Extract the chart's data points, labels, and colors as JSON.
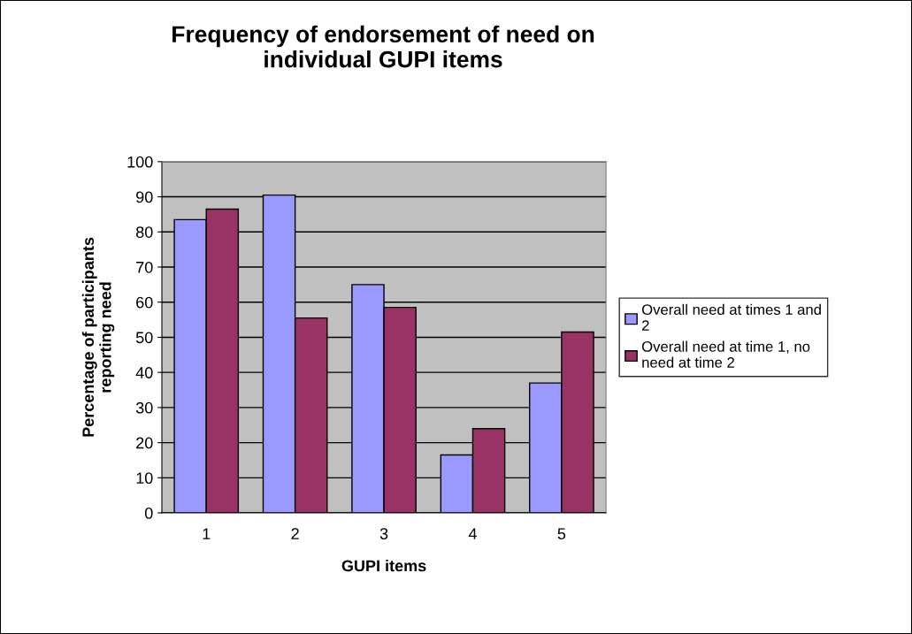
{
  "chart_data": {
    "type": "bar",
    "title": "Frequency of endorsement of need on\nindividual GUPI items",
    "xlabel": "GUPI items",
    "ylabel": "Percentage of participants\nreporting need",
    "categories": [
      "1",
      "2",
      "3",
      "4",
      "5"
    ],
    "series": [
      {
        "name": "Overall need at times 1 and\n2",
        "color": "#9999ff",
        "values": [
          83.5,
          90.5,
          65,
          16.5,
          37
        ]
      },
      {
        "name": "Overall need at time 1, no\nneed at time 2",
        "color": "#993366",
        "values": [
          86.5,
          55.5,
          58.5,
          24,
          51.5
        ]
      }
    ],
    "ylim": [
      0,
      100
    ],
    "yticks": [
      0,
      10,
      20,
      30,
      40,
      50,
      60,
      70,
      80,
      90,
      100
    ],
    "grid": "y",
    "legend": "right"
  }
}
